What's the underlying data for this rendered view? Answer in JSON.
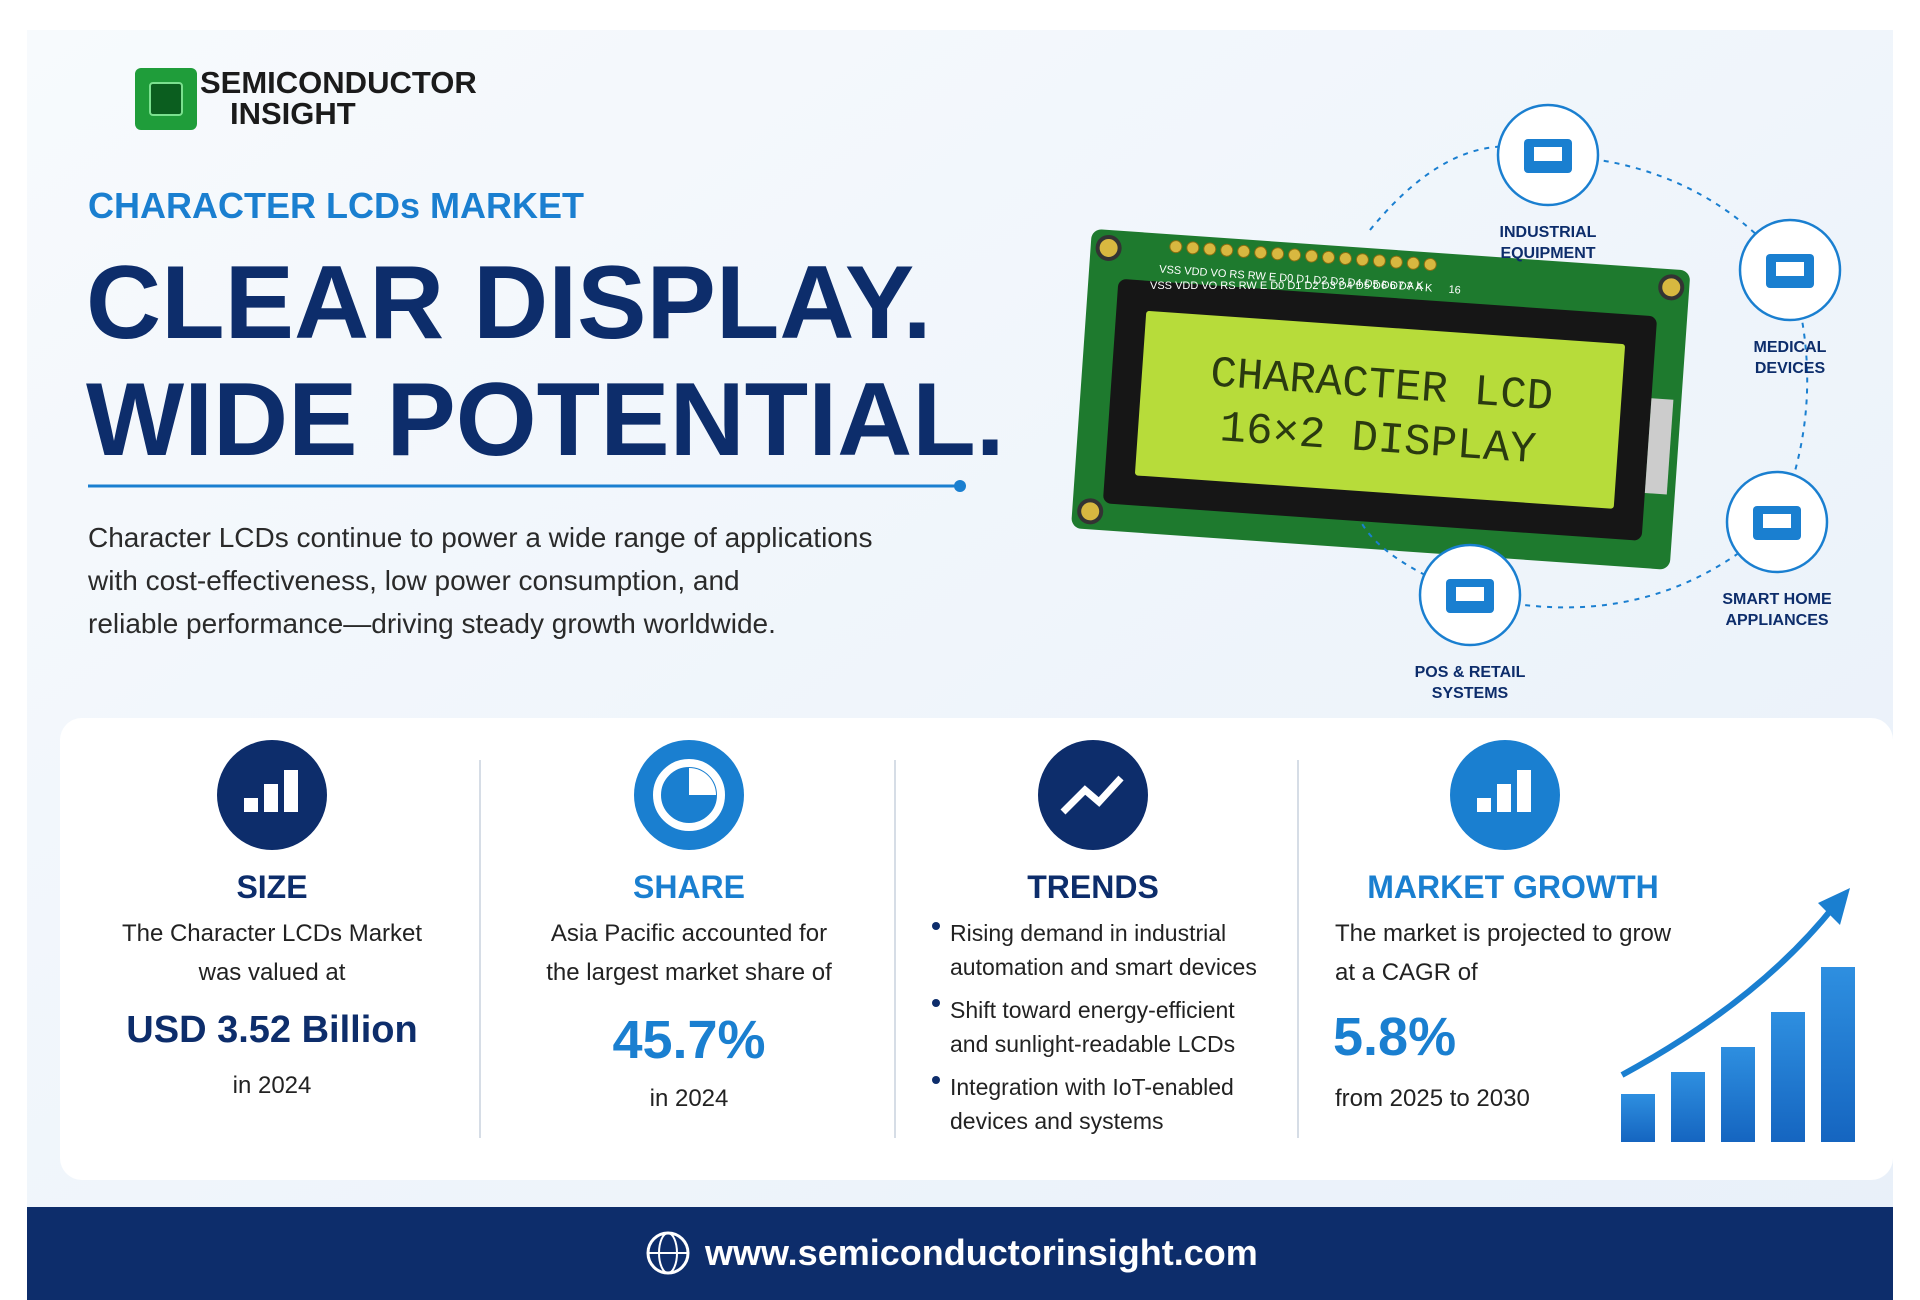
{
  "logo": {
    "line1": "SEMICONDUCTOR",
    "line2": "INSIGHT"
  },
  "header": {
    "label": "CHARACTER LCDs MARKET",
    "headline": [
      "CLEAR DISPLAY.",
      "WIDE POTENTIAL."
    ],
    "description": [
      "Character LCDs continue to power a wide range of applications",
      "with cost-effectiveness, low power consumption, and",
      "reliable performance—driving steady growth worldwide."
    ]
  },
  "display": {
    "pins": "VSS VDD VO RS RW E D0 D1 D2 D3 D4 D5 D6 D7 A K",
    "pin_count": "16",
    "screen": [
      "CHARACTER LCD",
      "16×2 DISPLAY"
    ]
  },
  "applications": [
    {
      "label": [
        "INDUSTRIAL",
        "EQUIPMENT"
      ]
    },
    {
      "label": [
        "MEDICAL",
        "DEVICES"
      ]
    },
    {
      "label": [
        "SMART HOME",
        "APPLIANCES"
      ]
    },
    {
      "label": [
        "POS & RETAIL",
        "SYSTEMS"
      ]
    }
  ],
  "stats": [
    {
      "title": "SIZE",
      "text": [
        "The Character LCDs Market",
        "was valued at"
      ],
      "value": "USD 3.52 Billion",
      "note": "in 2024"
    },
    {
      "title": "SHARE",
      "text": [
        "Asia Pacific accounted for",
        "the largest market share of"
      ],
      "value": "45.7%",
      "note": "in 2024"
    },
    {
      "title": "TRENDS",
      "bullets": [
        [
          "Rising demand in industrial",
          "automation and smart devices"
        ],
        [
          "Shift toward energy-efficient",
          "and sunlight-readable LCDs"
        ],
        [
          "Integration with IoT-enabled",
          "devices and systems"
        ]
      ]
    },
    {
      "title": "MARKET GROWTH",
      "text": [
        "The market is projected to grow",
        "at a CAGR of"
      ],
      "value": "5.8%",
      "note": "from 2025 to 2030"
    }
  ],
  "footer": {
    "url": "www.semiconductorinsight.com"
  }
}
